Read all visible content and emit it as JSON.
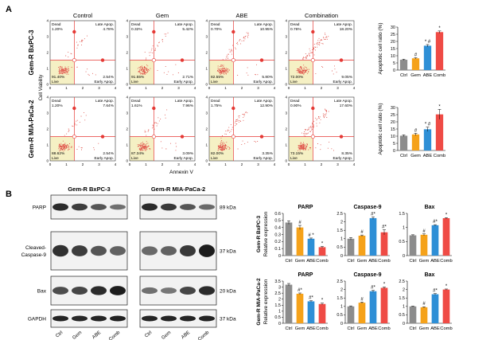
{
  "figure": {
    "panel_a_label": "A",
    "panel_b_label": "B",
    "flow": {
      "columns": [
        "Control",
        "Gem",
        "ABE",
        "Combination"
      ],
      "rows": [
        "Gem-R BxPC-3",
        "Gem-R MIA-PaCa-2"
      ],
      "y_axis_label": "Cell Viability",
      "x_axis_label": "Annexin V",
      "quad_dead": "Dead",
      "quad_late": "Late Apop.",
      "quad_live": "Live",
      "quad_early": "Early Apop.",
      "ticks": [
        "0",
        "1",
        "2",
        "3",
        "4"
      ],
      "plots": [
        [
          {
            "dead": "1.20%",
            "late": "4.78%",
            "live": "91.40%",
            "early": "2.54%"
          },
          {
            "dead": "0.32%",
            "late": "5.42%",
            "live": "91.55%",
            "early": "2.71%"
          },
          {
            "dead": "0.70%",
            "late": "10.95%",
            "live": "82.55%",
            "early": "5.80%"
          },
          {
            "dead": "0.76%",
            "late": "18.20%",
            "live": "72.00%",
            "early": "9.05%"
          }
        ],
        [
          {
            "dead": "1.20%",
            "late": "7.64%",
            "live": "88.62%",
            "early": "2.54%"
          },
          {
            "dead": "1.61%",
            "late": "7.96%",
            "live": "87.34%",
            "early": "3.09%"
          },
          {
            "dead": "1.75%",
            "late": "12.90%",
            "live": "82.00%",
            "early": "3.35%"
          },
          {
            "dead": "0.90%",
            "late": "17.60%",
            "live": "73.15%",
            "early": "8.35%"
          }
        ]
      ]
    },
    "western": {
      "cell_lines": [
        "Gem-R BxPC-3",
        "Gem-R MIA-PaCa-2"
      ],
      "proteins": [
        "PARP",
        "Cleaved-Caspase-9",
        "Bax",
        "GAPDH"
      ],
      "protein_label_lines": [
        [
          "PARP"
        ],
        [
          "Cleaved-",
          "Caspase-9"
        ],
        [
          "Bax"
        ],
        [
          "GAPDH"
        ]
      ],
      "kda": [
        "89 kDa",
        "37 kDa",
        "20 kDa",
        "37 kDa"
      ],
      "lanes": [
        "Ctrl",
        "Gem",
        "ABE",
        "Comb"
      ]
    },
    "colors": {
      "ctrl": "#8c8c8c",
      "gem": "#f5a21a",
      "abe": "#2e8fd6",
      "comb": "#ef4b45",
      "dot": "#e53935",
      "gate": "#f5f0c4"
    }
  },
  "chart_data": [
    {
      "type": "bar",
      "ylabel": "Apoptotic cell ratio (%)",
      "categories": [
        "Ctrl",
        "Gem",
        "ABE",
        "Comb"
      ],
      "values": [
        7.2,
        8.2,
        17.0,
        26.5
      ],
      "errors": [
        0.4,
        0.4,
        0.8,
        0.8
      ],
      "annotations": [
        "",
        "#",
        "* #",
        "*"
      ],
      "ylim": [
        0,
        30
      ],
      "yticks": [
        "0",
        "5",
        "10",
        "15",
        "20",
        "25",
        "30"
      ]
    },
    {
      "type": "bar",
      "ylabel": "Apoptotic cell ratio (%)",
      "categories": [
        "Ctrl",
        "Gem",
        "ABE",
        "Comb"
      ],
      "values": [
        10.3,
        11.2,
        14.8,
        25.2
      ],
      "errors": [
        0.6,
        0.8,
        1.5,
        3.5
      ],
      "annotations": [
        "",
        "#",
        "* #",
        "*"
      ],
      "ylim": [
        0,
        30
      ],
      "yticks": [
        "0",
        "5",
        "10",
        "15",
        "20",
        "25",
        "30"
      ]
    },
    {
      "type": "bar",
      "title": "PARP",
      "row_label": "Gem-R BxPC-3",
      "ylabel": "Relative expression",
      "categories": [
        "Ctrl",
        "Gem",
        "ABE",
        "Comb"
      ],
      "values": [
        0.47,
        0.4,
        0.24,
        0.12
      ],
      "errors": [
        0.025,
        0.03,
        0.01,
        0.01
      ],
      "annotations": [
        "",
        "#",
        "# *",
        "*"
      ],
      "ylim": [
        0,
        0.6
      ],
      "yticks": [
        "0",
        "0.1",
        "0.2",
        "0.3",
        "0.4",
        "0.5",
        "0.6"
      ]
    },
    {
      "type": "bar",
      "title": "Caspase-9",
      "row_label": "Gem-R BxPC-3",
      "ylabel": "Relative expression",
      "categories": [
        "Ctrl",
        "Gem",
        "ABE",
        "Comb"
      ],
      "values": [
        1.0,
        1.18,
        2.22,
        1.38
      ],
      "errors": [
        0.07,
        0.04,
        0.07,
        0.15
      ],
      "annotations": [
        "",
        "#",
        "#*",
        "#*"
      ],
      "ylim": [
        0,
        2.5
      ],
      "yticks": [
        "0",
        "0.5",
        "1",
        "1.5",
        "2",
        "2.5"
      ]
    },
    {
      "type": "bar",
      "title": "Bax",
      "row_label": "Gem-R BxPC-3",
      "ylabel": "Relative expression",
      "categories": [
        "Ctrl",
        "Gem",
        "ABE",
        "Comb"
      ],
      "values": [
        0.72,
        0.74,
        1.08,
        1.33
      ],
      "errors": [
        0.02,
        0.03,
        0.02,
        0.02
      ],
      "annotations": [
        "",
        "#",
        "#*",
        "*"
      ],
      "ylim": [
        0,
        1.5
      ],
      "yticks": [
        "0",
        "0.5",
        "1",
        "1.5"
      ]
    },
    {
      "type": "bar",
      "title": "PARP",
      "row_label": "Gem-R MIA-PaCa-2",
      "ylabel": "Relative expression",
      "categories": [
        "Ctrl",
        "Gem",
        "ABE",
        "Comb"
      ],
      "values": [
        3.2,
        2.45,
        1.82,
        1.6
      ],
      "errors": [
        0.1,
        0.06,
        0.05,
        0.07
      ],
      "annotations": [
        "",
        "#*",
        "#*",
        "*"
      ],
      "ylim": [
        0,
        3.5
      ],
      "yticks": [
        "0",
        "0.5",
        "1",
        "1.5",
        "2",
        "2.5",
        "3",
        "3.5"
      ]
    },
    {
      "type": "bar",
      "title": "Caspase-9",
      "row_label": "Gem-R MIA-PaCa-2",
      "ylabel": "Relative expression",
      "categories": [
        "Ctrl",
        "Gem",
        "ABE",
        "Comb"
      ],
      "values": [
        1.0,
        1.22,
        1.9,
        2.1
      ],
      "errors": [
        0.03,
        0.04,
        0.05,
        0.05
      ],
      "annotations": [
        "",
        "#",
        "#*",
        "*"
      ],
      "ylim": [
        0,
        2.5
      ],
      "yticks": [
        "0",
        "0.5",
        "1",
        "1.5",
        "2",
        "2.5"
      ]
    },
    {
      "type": "bar",
      "title": "Bax",
      "row_label": "Gem-R MIA-PaCa-2",
      "ylabel": "Relative expression",
      "categories": [
        "Ctrl",
        "Gem",
        "ABE",
        "Comb"
      ],
      "values": [
        1.0,
        0.95,
        1.72,
        2.0
      ],
      "errors": [
        0.02,
        0.03,
        0.04,
        0.03
      ],
      "annotations": [
        "",
        "#",
        "#*",
        "*"
      ],
      "ylim": [
        0,
        2.5
      ],
      "yticks": [
        "0",
        "0.5",
        "1",
        "1.5",
        "2",
        "2.5"
      ]
    }
  ]
}
